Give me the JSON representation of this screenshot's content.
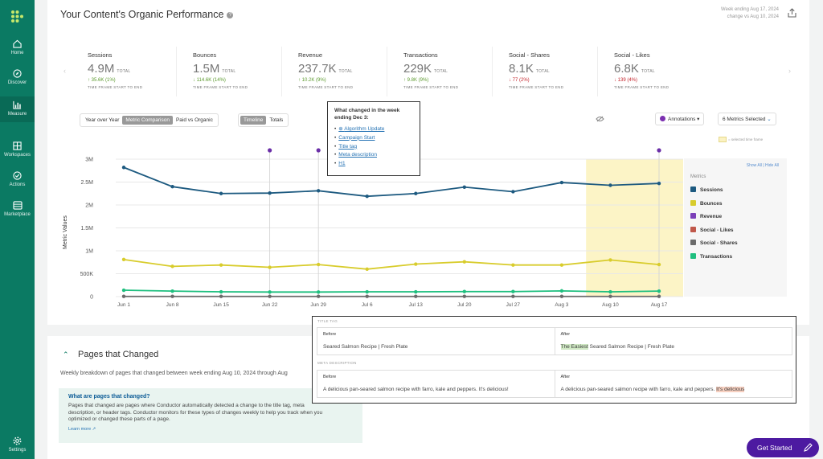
{
  "nav": {
    "items": [
      {
        "label": "Home",
        "icon": "home-icon"
      },
      {
        "label": "Discover",
        "icon": "compass-icon"
      },
      {
        "label": "Measure",
        "icon": "bar-chart-icon"
      },
      {
        "label": "Workspaces",
        "icon": "grid-icon"
      },
      {
        "label": "Actions",
        "icon": "actions-icon"
      },
      {
        "label": "Marketplace",
        "icon": "store-icon"
      }
    ],
    "settings_label": "Settings"
  },
  "header": {
    "title": "Your Content's Organic Performance",
    "week_line1": "Week ending Aug 17, 2024",
    "week_line2": "change vs Aug 10, 2024"
  },
  "kpis": [
    {
      "name": "Sessions",
      "value": "4.9M",
      "total": "TOTAL",
      "change": "↑ 35.6K (1%)",
      "dir": "up",
      "frame": "TIME FRAME START TO END"
    },
    {
      "name": "Bounces",
      "value": "1.5M",
      "total": "TOTAL",
      "change": "↓ 114.6K (14%)",
      "dir": "up",
      "frame": "TIME FRAME START TO END"
    },
    {
      "name": "Revenue",
      "value": "237.7K",
      "total": "TOTAL",
      "change": "↑ 10.2K (9%)",
      "dir": "up",
      "frame": "TIME FRAME START TO END"
    },
    {
      "name": "Transactions",
      "value": "229K",
      "total": "TOTAL",
      "change": "↑ 9.8K (9%)",
      "dir": "up",
      "frame": "TIME FRAME START TO END"
    },
    {
      "name": "Social - Shares",
      "value": "8.1K",
      "total": "TOTAL",
      "change": "↓ 77 (2%)",
      "dir": "down",
      "frame": "TIME FRAME START TO END"
    },
    {
      "name": "Social - Likes",
      "value": "6.8K",
      "total": "TOTAL",
      "change": "↓ 139 (4%)",
      "dir": "down",
      "frame": "TIME FRAME START TO END"
    }
  ],
  "controls": {
    "compare_tabs": [
      "Year over Year",
      "Metric Comparison",
      "Paid vs Organic"
    ],
    "view_tabs": [
      "Timeline",
      "Totals"
    ],
    "annotations_label": "Annotations",
    "metrics_selected_label": "6 Metrics Selected",
    "selected_time_frame": "= selected time frame"
  },
  "popup": {
    "heading": "What changed in the week ending Dec 3:",
    "items": [
      "Algorithm Update",
      "Campaign Start",
      "Title tag",
      "Meta description",
      "H1"
    ]
  },
  "legend": {
    "show_all": "Show All",
    "hide_all": "Hide All",
    "header": "Metrics",
    "items": [
      {
        "label": "Sessions",
        "color": "#1d5a80"
      },
      {
        "label": "Bounces",
        "color": "#d8cc2c"
      },
      {
        "label": "Revenue",
        "color": "#7b3fb8"
      },
      {
        "label": "Social - Likes",
        "color": "#c0584a"
      },
      {
        "label": "Social - Shares",
        "color": "#6b6b6b"
      },
      {
        "label": "Transactions",
        "color": "#1fbf7f"
      }
    ]
  },
  "chart_data": {
    "type": "line",
    "ylabel": "Metric Values",
    "ylim": [
      0,
      3000000
    ],
    "y_ticks": [
      "0",
      "500K",
      "1M",
      "1.5M",
      "2M",
      "2.5M",
      "3M"
    ],
    "categories": [
      "Jun 1",
      "Jun 8",
      "Jun 15",
      "Jun 22",
      "Jun 29",
      "Jul 6",
      "Jul 13",
      "Jul 20",
      "Jul 27",
      "Aug 3",
      "Aug 10",
      "Aug 17"
    ],
    "highlight_range": [
      "Aug 10",
      "Aug 17"
    ],
    "annotation_markers": [
      "Jun 22",
      "Jun 29",
      "Aug 17"
    ],
    "series": [
      {
        "name": "Sessions",
        "color": "#1d5a80",
        "values": [
          2820000,
          2400000,
          2250000,
          2260000,
          2310000,
          2190000,
          2250000,
          2390000,
          2290000,
          2490000,
          2430000,
          2470000
        ]
      },
      {
        "name": "Bounces",
        "color": "#d8cc2c",
        "values": [
          810000,
          660000,
          690000,
          640000,
          700000,
          600000,
          710000,
          760000,
          690000,
          690000,
          800000,
          700000
        ]
      },
      {
        "name": "Transactions",
        "color": "#1fbf7f",
        "values": [
          140000,
          120000,
          105000,
          100000,
          100000,
          105000,
          105000,
          110000,
          110000,
          125000,
          105000,
          120000
        ]
      },
      {
        "name": "Social - Shares",
        "color": "#6b6b6b",
        "values": [
          5000,
          5000,
          5000,
          5000,
          5000,
          5000,
          5000,
          5000,
          5000,
          5000,
          5000,
          5000
        ]
      }
    ]
  },
  "pages_changed": {
    "title": "Pages that Changed",
    "description": "Weekly breakdown of pages that changed between week ending Aug 10, 2024 through Aug",
    "info_heading": "What are pages that changed?",
    "info_body": "Pages that changed are pages where Conductor automatically detected a change to the title tag, meta description, or header tags. Conductor monitors for these types of changes weekly to help you track when you optimized or changed these parts of a page.",
    "learn_more": "Learn more"
  },
  "comparison": {
    "title_section": "TITLE TAG",
    "meta_section": "META DESCRIPTION",
    "before_label": "Before",
    "after_label": "After",
    "title_before": "Seared Salmon Recipe | Fresh Plate",
    "title_after_hl": "The Easiest",
    "title_after_rest": " Seared Salmon Recipe | Fresh Plate",
    "meta_before": "A delicious pan-seared salmon recipe with farro, kale and peppers. It's delicious!",
    "meta_after_rest": "A delicious pan-seared salmon recipe with farro, kale and peppers. ",
    "meta_after_hl": "It's delicious"
  },
  "cta": {
    "get_started": "Get Started"
  }
}
